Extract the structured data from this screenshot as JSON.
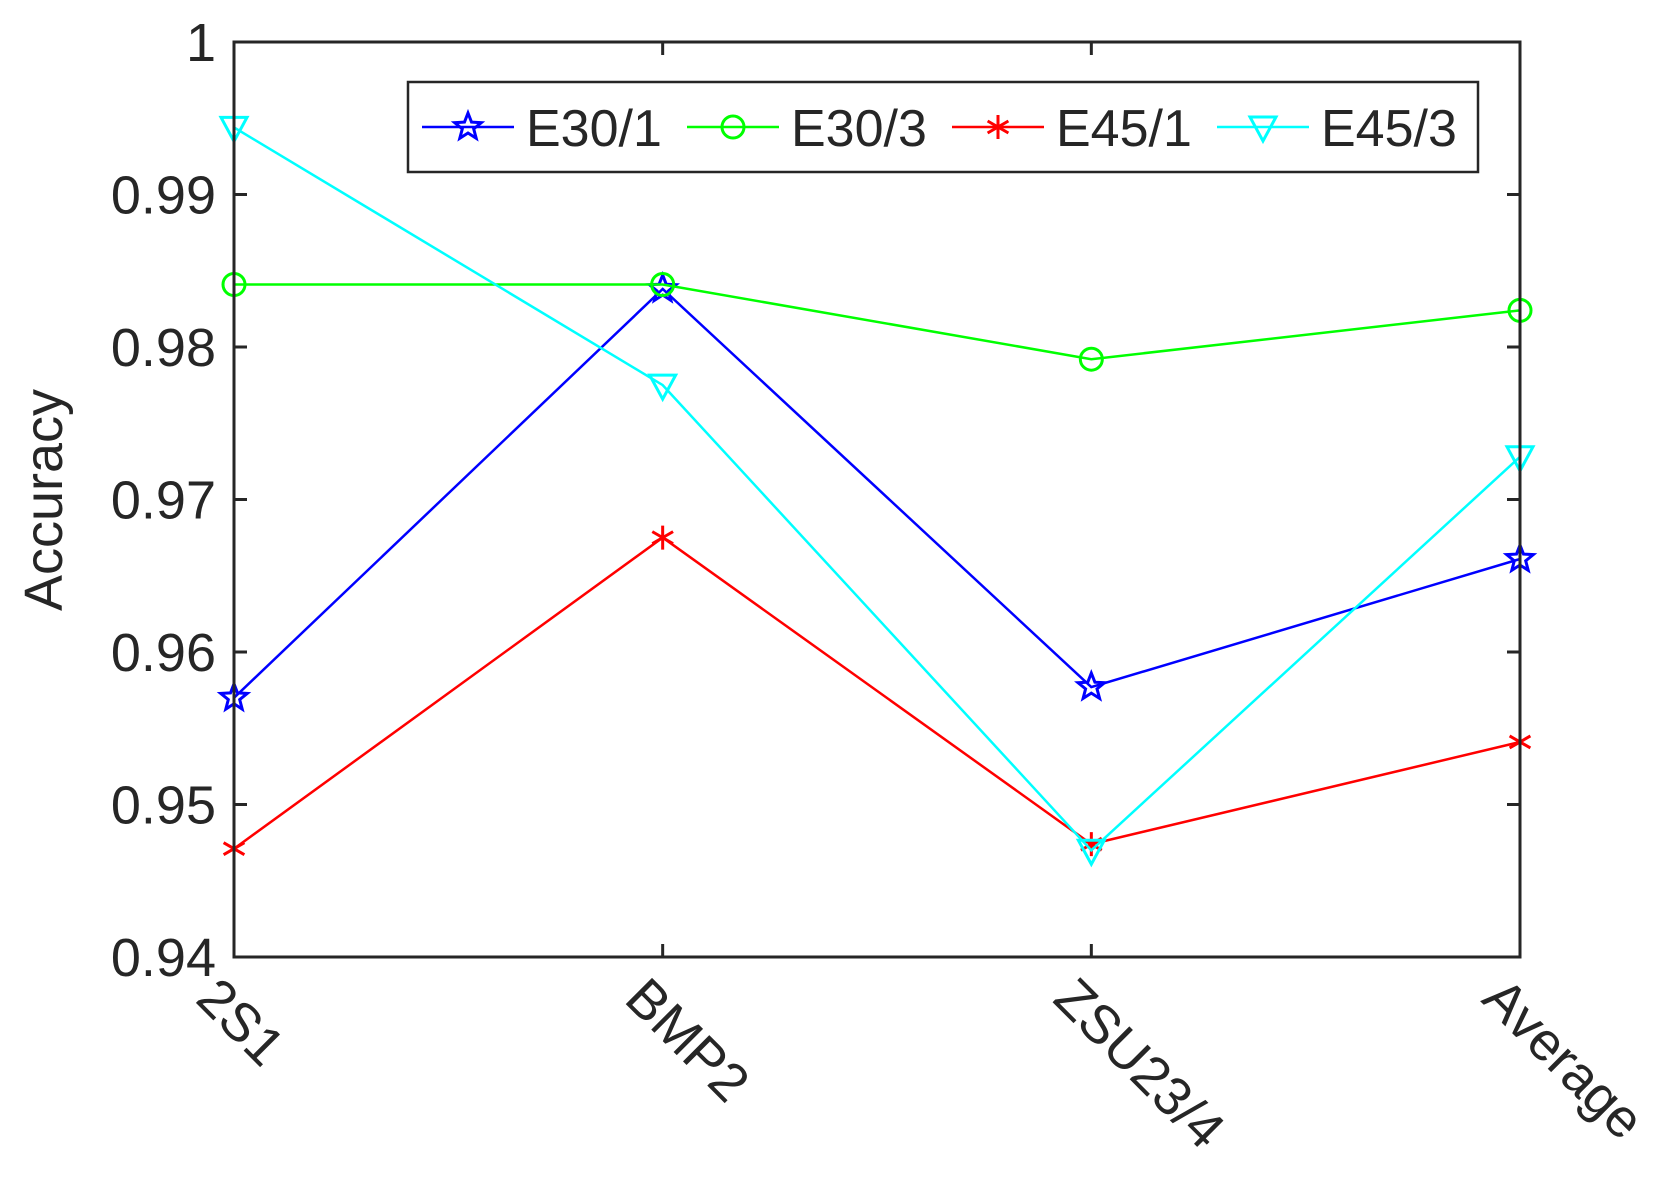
{
  "chart_data": {
    "type": "line",
    "title": "",
    "xlabel": "",
    "ylabel": "Accuracy",
    "categories": [
      "2S1",
      "BMP2",
      "ZSU23/4",
      "Average"
    ],
    "ylim": [
      0.94,
      1.0
    ],
    "yticks": [
      0.94,
      0.95,
      0.96,
      0.97,
      0.98,
      0.99,
      1
    ],
    "ytick_labels": [
      "0.94",
      "0.95",
      "0.96",
      "0.97",
      "0.98",
      "0.99",
      "1"
    ],
    "legend_position": "top-right",
    "grid": false,
    "series": [
      {
        "name": "E30/1",
        "color": "#0000ff",
        "marker": "star",
        "values": [
          0.957,
          0.9838,
          0.9577,
          0.9661
        ]
      },
      {
        "name": "E30/3",
        "color": "#00ff00",
        "marker": "circle",
        "values": [
          0.9841,
          0.9841,
          0.9792,
          0.9824
        ]
      },
      {
        "name": "E45/1",
        "color": "#ff0000",
        "marker": "asterisk",
        "values": [
          0.9471,
          0.9675,
          0.9474,
          0.9541
        ]
      },
      {
        "name": "E45/3",
        "color": "#00ffff",
        "marker": "triangle-down",
        "values": [
          0.9944,
          0.9775,
          0.947,
          0.9728
        ]
      }
    ]
  }
}
